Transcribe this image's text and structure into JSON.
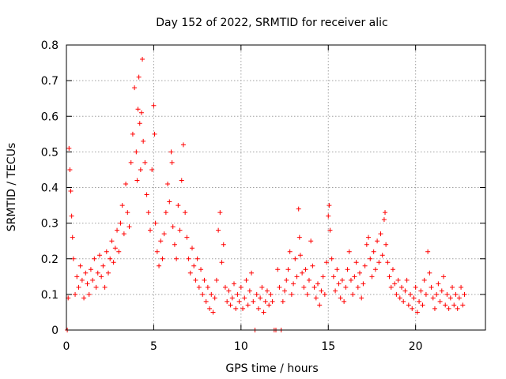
{
  "chart_data": {
    "type": "scatter",
    "title": "Day 152 of 2022, SRMTID for receiver alic",
    "xlabel": "GPS time / hours",
    "ylabel": "SRMTID / TECUs",
    "xlim": [
      0,
      24
    ],
    "ylim": [
      0,
      0.8
    ],
    "xticks": [
      0,
      5,
      10,
      15,
      20
    ],
    "xtick_labels": [
      "0",
      "5",
      "10",
      "15",
      "20"
    ],
    "yticks": [
      0,
      0.1,
      0.2,
      0.3,
      0.4,
      0.5,
      0.6,
      0.7,
      0.8
    ],
    "ytick_labels": [
      "0",
      "0.1",
      "0.2",
      "0.3",
      "0.4",
      "0.5",
      "0.6",
      "0.7",
      "0.8"
    ],
    "grid": true,
    "marker": "+",
    "series": [
      {
        "name": "SRMTID",
        "color": "#ff0000",
        "points": [
          [
            0.05,
            0.0
          ],
          [
            0.1,
            0.09
          ],
          [
            0.15,
            0.51
          ],
          [
            0.2,
            0.45
          ],
          [
            0.25,
            0.39
          ],
          [
            0.3,
            0.32
          ],
          [
            0.35,
            0.26
          ],
          [
            0.4,
            0.2
          ],
          [
            0.5,
            0.1
          ],
          [
            0.6,
            0.15
          ],
          [
            0.7,
            0.12
          ],
          [
            0.8,
            0.18
          ],
          [
            0.9,
            0.14
          ],
          [
            1.0,
            0.09
          ],
          [
            1.1,
            0.16
          ],
          [
            1.2,
            0.13
          ],
          [
            1.3,
            0.1
          ],
          [
            1.4,
            0.17
          ],
          [
            1.5,
            0.14
          ],
          [
            1.6,
            0.2
          ],
          [
            1.7,
            0.12
          ],
          [
            1.8,
            0.16
          ],
          [
            1.9,
            0.21
          ],
          [
            2.0,
            0.15
          ],
          [
            2.1,
            0.18
          ],
          [
            2.2,
            0.12
          ],
          [
            2.3,
            0.22
          ],
          [
            2.4,
            0.16
          ],
          [
            2.5,
            0.2
          ],
          [
            2.6,
            0.25
          ],
          [
            2.7,
            0.19
          ],
          [
            2.8,
            0.23
          ],
          [
            2.9,
            0.28
          ],
          [
            3.0,
            0.22
          ],
          [
            3.1,
            0.3
          ],
          [
            3.2,
            0.35
          ],
          [
            3.3,
            0.27
          ],
          [
            3.4,
            0.41
          ],
          [
            3.5,
            0.33
          ],
          [
            3.6,
            0.29
          ],
          [
            3.7,
            0.47
          ],
          [
            3.8,
            0.55
          ],
          [
            3.9,
            0.68
          ],
          [
            4.0,
            0.5
          ],
          [
            4.05,
            0.42
          ],
          [
            4.1,
            0.62
          ],
          [
            4.15,
            0.71
          ],
          [
            4.2,
            0.58
          ],
          [
            4.25,
            0.45
          ],
          [
            4.3,
            0.61
          ],
          [
            4.35,
            0.76
          ],
          [
            4.4,
            0.53
          ],
          [
            4.5,
            0.47
          ],
          [
            4.6,
            0.38
          ],
          [
            4.7,
            0.33
          ],
          [
            4.8,
            0.28
          ],
          [
            4.9,
            0.45
          ],
          [
            5.0,
            0.63
          ],
          [
            5.05,
            0.55
          ],
          [
            5.1,
            0.3
          ],
          [
            5.2,
            0.22
          ],
          [
            5.3,
            0.18
          ],
          [
            5.4,
            0.25
          ],
          [
            5.5,
            0.2
          ],
          [
            5.6,
            0.27
          ],
          [
            5.7,
            0.33
          ],
          [
            5.8,
            0.41
          ],
          [
            5.9,
            0.36
          ],
          [
            6.0,
            0.5
          ],
          [
            6.05,
            0.47
          ],
          [
            6.1,
            0.29
          ],
          [
            6.2,
            0.24
          ],
          [
            6.3,
            0.2
          ],
          [
            6.4,
            0.35
          ],
          [
            6.5,
            0.28
          ],
          [
            6.6,
            0.42
          ],
          [
            6.7,
            0.52
          ],
          [
            6.8,
            0.33
          ],
          [
            6.9,
            0.26
          ],
          [
            7.0,
            0.2
          ],
          [
            7.1,
            0.16
          ],
          [
            7.2,
            0.23
          ],
          [
            7.3,
            0.18
          ],
          [
            7.4,
            0.14
          ],
          [
            7.5,
            0.2
          ],
          [
            7.6,
            0.12
          ],
          [
            7.7,
            0.17
          ],
          [
            7.8,
            0.1
          ],
          [
            7.9,
            0.14
          ],
          [
            8.0,
            0.08
          ],
          [
            8.1,
            0.12
          ],
          [
            8.2,
            0.06
          ],
          [
            8.3,
            0.1
          ],
          [
            8.4,
            0.05
          ],
          [
            8.5,
            0.09
          ],
          [
            8.6,
            0.14
          ],
          [
            8.7,
            0.28
          ],
          [
            8.8,
            0.33
          ],
          [
            8.9,
            0.19
          ],
          [
            9.0,
            0.24
          ],
          [
            9.1,
            0.12
          ],
          [
            9.2,
            0.08
          ],
          [
            9.3,
            0.11
          ],
          [
            9.4,
            0.07
          ],
          [
            9.5,
            0.09
          ],
          [
            9.6,
            0.13
          ],
          [
            9.7,
            0.06
          ],
          [
            9.8,
            0.1
          ],
          [
            9.9,
            0.08
          ],
          [
            10.0,
            0.12
          ],
          [
            10.1,
            0.06
          ],
          [
            10.2,
            0.09
          ],
          [
            10.3,
            0.14
          ],
          [
            10.4,
            0.07
          ],
          [
            10.5,
            0.11
          ],
          [
            10.6,
            0.16
          ],
          [
            10.7,
            0.08
          ],
          [
            10.8,
            0.0
          ],
          [
            10.9,
            0.1
          ],
          [
            11.0,
            0.06
          ],
          [
            11.1,
            0.09
          ],
          [
            11.2,
            0.12
          ],
          [
            11.3,
            0.05
          ],
          [
            11.4,
            0.08
          ],
          [
            11.5,
            0.11
          ],
          [
            11.6,
            0.07
          ],
          [
            11.7,
            0.1
          ],
          [
            11.8,
            0.08
          ],
          [
            11.9,
            0.0
          ],
          [
            12.0,
            0.0
          ],
          [
            12.1,
            0.17
          ],
          [
            12.2,
            0.12
          ],
          [
            12.3,
            0.0
          ],
          [
            12.4,
            0.08
          ],
          [
            12.5,
            0.11
          ],
          [
            12.6,
            0.14
          ],
          [
            12.7,
            0.17
          ],
          [
            12.8,
            0.22
          ],
          [
            12.9,
            0.1
          ],
          [
            13.0,
            0.13
          ],
          [
            13.1,
            0.2
          ],
          [
            13.2,
            0.15
          ],
          [
            13.3,
            0.34
          ],
          [
            13.35,
            0.26
          ],
          [
            13.4,
            0.21
          ],
          [
            13.5,
            0.16
          ],
          [
            13.6,
            0.12
          ],
          [
            13.7,
            0.17
          ],
          [
            13.8,
            0.1
          ],
          [
            13.9,
            0.14
          ],
          [
            14.0,
            0.25
          ],
          [
            14.1,
            0.18
          ],
          [
            14.2,
            0.12
          ],
          [
            14.3,
            0.09
          ],
          [
            14.4,
            0.13
          ],
          [
            14.5,
            0.07
          ],
          [
            14.6,
            0.11
          ],
          [
            14.7,
            0.15
          ],
          [
            14.8,
            0.1
          ],
          [
            14.9,
            0.19
          ],
          [
            15.0,
            0.32
          ],
          [
            15.05,
            0.35
          ],
          [
            15.1,
            0.28
          ],
          [
            15.2,
            0.2
          ],
          [
            15.3,
            0.15
          ],
          [
            15.4,
            0.11
          ],
          [
            15.5,
            0.17
          ],
          [
            15.6,
            0.13
          ],
          [
            15.7,
            0.09
          ],
          [
            15.8,
            0.14
          ],
          [
            15.9,
            0.08
          ],
          [
            16.0,
            0.12
          ],
          [
            16.1,
            0.17
          ],
          [
            16.2,
            0.22
          ],
          [
            16.3,
            0.14
          ],
          [
            16.4,
            0.1
          ],
          [
            16.5,
            0.15
          ],
          [
            16.6,
            0.19
          ],
          [
            16.7,
            0.12
          ],
          [
            16.8,
            0.16
          ],
          [
            16.9,
            0.09
          ],
          [
            17.0,
            0.13
          ],
          [
            17.1,
            0.18
          ],
          [
            17.2,
            0.24
          ],
          [
            17.3,
            0.26
          ],
          [
            17.4,
            0.2
          ],
          [
            17.5,
            0.15
          ],
          [
            17.6,
            0.22
          ],
          [
            17.7,
            0.17
          ],
          [
            17.8,
            0.25
          ],
          [
            17.9,
            0.19
          ],
          [
            18.0,
            0.27
          ],
          [
            18.1,
            0.21
          ],
          [
            18.2,
            0.31
          ],
          [
            18.25,
            0.33
          ],
          [
            18.3,
            0.24
          ],
          [
            18.4,
            0.19
          ],
          [
            18.5,
            0.15
          ],
          [
            18.6,
            0.12
          ],
          [
            18.7,
            0.17
          ],
          [
            18.8,
            0.13
          ],
          [
            18.9,
            0.1
          ],
          [
            19.0,
            0.14
          ],
          [
            19.1,
            0.09
          ],
          [
            19.2,
            0.12
          ],
          [
            19.3,
            0.08
          ],
          [
            19.4,
            0.11
          ],
          [
            19.5,
            0.14
          ],
          [
            19.6,
            0.07
          ],
          [
            19.7,
            0.1
          ],
          [
            19.8,
            0.06
          ],
          [
            19.9,
            0.09
          ],
          [
            20.0,
            0.12
          ],
          [
            20.1,
            0.05
          ],
          [
            20.2,
            0.08
          ],
          [
            20.3,
            0.11
          ],
          [
            20.4,
            0.07
          ],
          [
            20.5,
            0.14
          ],
          [
            20.6,
            0.1
          ],
          [
            20.7,
            0.22
          ],
          [
            20.8,
            0.16
          ],
          [
            20.9,
            0.12
          ],
          [
            21.0,
            0.09
          ],
          [
            21.1,
            0.06
          ],
          [
            21.2,
            0.1
          ],
          [
            21.3,
            0.13
          ],
          [
            21.4,
            0.08
          ],
          [
            21.5,
            0.11
          ],
          [
            21.6,
            0.15
          ],
          [
            21.7,
            0.07
          ],
          [
            21.8,
            0.1
          ],
          [
            21.9,
            0.06
          ],
          [
            22.0,
            0.09
          ],
          [
            22.1,
            0.12
          ],
          [
            22.2,
            0.07
          ],
          [
            22.3,
            0.1
          ],
          [
            22.4,
            0.06
          ],
          [
            22.5,
            0.09
          ],
          [
            22.6,
            0.12
          ],
          [
            22.7,
            0.07
          ],
          [
            22.8,
            0.1
          ]
        ]
      }
    ]
  }
}
